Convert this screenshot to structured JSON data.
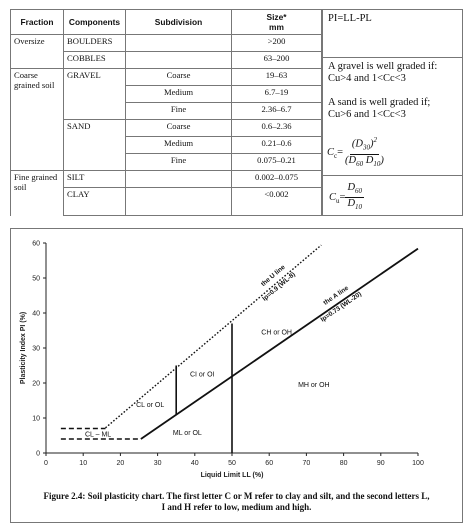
{
  "table": {
    "headers": [
      "Fraction",
      "Components",
      "Subdivision",
      "Size*",
      "mm"
    ],
    "rows": [
      {
        "fraction": "Oversize",
        "component": "BOULDERS",
        "subdivision": "",
        "size": ">200"
      },
      {
        "fraction": "",
        "component": "COBBLES",
        "subdivision": "",
        "size": "63–200"
      },
      {
        "fraction": "Coarse grained soil",
        "component": "GRAVEL",
        "subdivision": "Coarse",
        "size": "19–63"
      },
      {
        "fraction": "",
        "component": "",
        "subdivision": "Medium",
        "size": "6.7–19"
      },
      {
        "fraction": "",
        "component": "",
        "subdivision": "Fine",
        "size": "2.36–6.7"
      },
      {
        "fraction": "",
        "component": "SAND",
        "subdivision": "Coarse",
        "size": "0.6–2.36"
      },
      {
        "fraction": "",
        "component": "",
        "subdivision": "Medium",
        "size": "0.21–0.6"
      },
      {
        "fraction": "",
        "component": "",
        "subdivision": "Fine",
        "size": "0.075–0.21"
      },
      {
        "fraction": "Fine grained soil",
        "component": "SILT",
        "subdivision": "",
        "size": "0.002–0.075"
      },
      {
        "fraction": "",
        "component": "CLAY",
        "subdivision": "",
        "size": "<0.002"
      }
    ]
  },
  "info": {
    "pi_formula": "PI=LL-PL",
    "gravel_line1": "A gravel is well graded if:",
    "gravel_line2": "Cu>4 and 1<Cc<3",
    "sand_line1": "A sand is well graded if;",
    "sand_line2": "Cu>6 and 1<Cc<3",
    "cc_symbol": "C",
    "cc_sub": "c",
    "cc_num": "(D",
    "cc_num_sub": "30",
    "cc_num_close": ")",
    "cc_num_sup": "2",
    "cc_den_a": "(D",
    "cc_den_a_sub": "60",
    "cc_den_b": " D",
    "cc_den_b_sub": "10",
    "cc_den_close": ")",
    "cu_symbol": "C",
    "cu_sub": "u",
    "cu_num": "D",
    "cu_num_sub": "60",
    "cu_den": "D",
    "cu_den_sub": "10"
  },
  "chart_data": {
    "type": "line",
    "xlabel": "Liquid Limit LL (%)",
    "ylabel": "Plasticity Index PI (%)",
    "xlim": [
      0,
      100
    ],
    "ylim": [
      0,
      60
    ],
    "xticks": [
      0,
      10,
      20,
      30,
      40,
      50,
      60,
      70,
      80,
      90,
      100
    ],
    "yticks": [
      0,
      10,
      20,
      30,
      40,
      50,
      60
    ],
    "series": [
      {
        "name": "the U line",
        "equation": "Ip=0.9 (WL-8)",
        "style": "dotted",
        "x": [
          16,
          74
        ],
        "y": [
          7.2,
          59.4
        ]
      },
      {
        "name": "the A line",
        "equation": "Ip=0.73 (WL-20)",
        "style": "solid",
        "x": [
          25.5,
          100
        ],
        "y": [
          4,
          58.4
        ]
      }
    ],
    "segments": [
      {
        "style": "dashed",
        "x": [
          4,
          16
        ],
        "y": [
          7,
          7
        ]
      },
      {
        "style": "dashed",
        "x": [
          4,
          25.5
        ],
        "y": [
          4,
          4
        ]
      },
      {
        "style": "solid",
        "x": [
          35,
          35
        ],
        "y": [
          10.95,
          25
        ]
      },
      {
        "style": "solid",
        "x": [
          50,
          50
        ],
        "y": [
          0,
          37
        ]
      }
    ],
    "regions": [
      {
        "label": "CL – ML",
        "x": 14,
        "y": 5.3
      },
      {
        "label": "CL or OL",
        "x": 28,
        "y": 13.7
      },
      {
        "label": "CI or OI",
        "x": 42,
        "y": 22.4
      },
      {
        "label": "CH or OH",
        "x": 62,
        "y": 34.5
      },
      {
        "label": "MH or OH",
        "x": 72,
        "y": 19.5
      },
      {
        "label": "ML or OL",
        "x": 38,
        "y": 5.7
      }
    ]
  },
  "caption_line1": "Figure 2.4: Soil plasticity chart. The first letter C or M refer to clay and silt, and the second letters L,",
  "caption_line2": "I and H refer to low, medium and high."
}
